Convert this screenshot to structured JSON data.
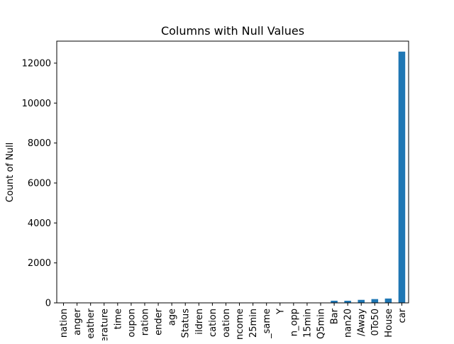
{
  "chart_data": {
    "type": "bar",
    "title": "Columns with Null Values",
    "xlabel": "",
    "ylabel": "Count of Null",
    "ylim": [
      0,
      13100
    ],
    "yticks": [
      0,
      2000,
      4000,
      6000,
      8000,
      10000,
      12000
    ],
    "grid": false,
    "legend": "none",
    "bar_color": "#1f77b4",
    "categories": [
      "nation",
      "anger",
      "eather",
      "erature",
      "time",
      "oupon",
      "ration",
      "ender",
      "age",
      "Status",
      "ildren",
      "cation",
      "oation",
      "ncome",
      "25min",
      "_same",
      "Y",
      "n_opp",
      "15min",
      "Q5min",
      "Bar",
      "nan20",
      "/Away",
      "0To50",
      "House",
      "car"
    ],
    "values": [
      0,
      0,
      0,
      0,
      0,
      0,
      0,
      0,
      0,
      0,
      0,
      0,
      0,
      0,
      0,
      0,
      0,
      0,
      0,
      0,
      107,
      106,
      151,
      189,
      217,
      12576
    ]
  }
}
